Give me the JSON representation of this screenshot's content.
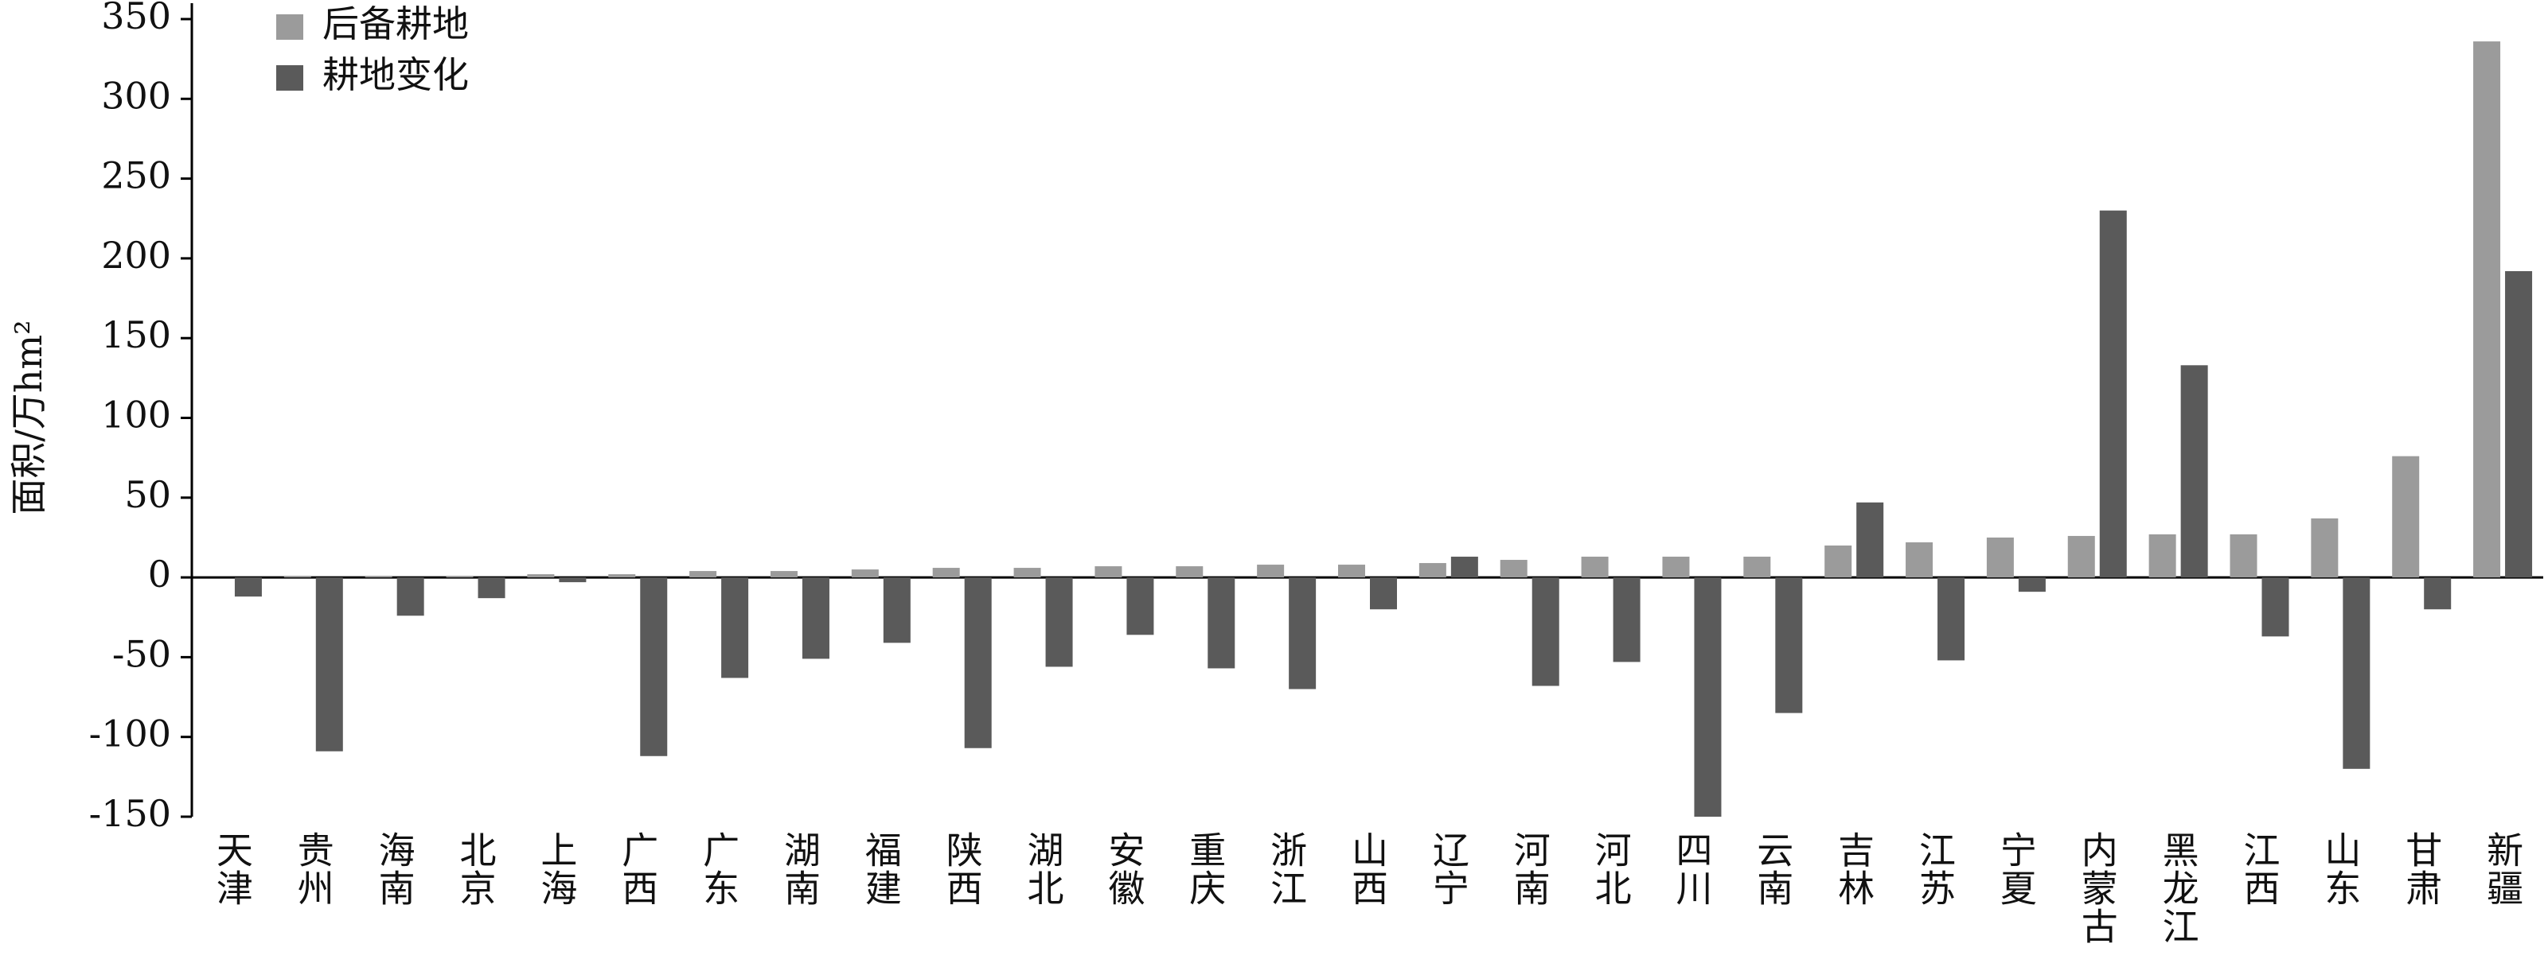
{
  "chart_data": {
    "type": "bar",
    "y_label": "面积/万hm²",
    "categories": [
      "天津",
      "贵州",
      "海南",
      "北京",
      "上海",
      "广西",
      "广东",
      "湖南",
      "福建",
      "陕西",
      "湖北",
      "安徽",
      "重庆",
      "浙江",
      "山西",
      "辽宁",
      "河南",
      "河北",
      "四川",
      "云南",
      "吉林",
      "江苏",
      "宁夏",
      "内蒙古",
      "黑龙江",
      "江西",
      "山东",
      "甘肃",
      "新疆"
    ],
    "series": [
      {
        "name": "后备耕地",
        "color": "#9b9b9b",
        "values": [
          0,
          1,
          1,
          1,
          2,
          2,
          4,
          4,
          5,
          6,
          6,
          7,
          7,
          8,
          8,
          9,
          11,
          13,
          13,
          13,
          20,
          22,
          25,
          26,
          27,
          27,
          37,
          76,
          336
        ]
      },
      {
        "name": "耕地变化",
        "color": "#5a5a5a",
        "values": [
          -12,
          -109,
          -24,
          -13,
          -3,
          -112,
          -63,
          -51,
          -41,
          -107,
          -56,
          -36,
          -57,
          -70,
          -20,
          13,
          -68,
          -53,
          -150,
          -85,
          47,
          -52,
          -9,
          230,
          133,
          -37,
          -120,
          -20,
          192
        ]
      }
    ],
    "ylim": [
      -150,
      350
    ],
    "yticks": [
      -150,
      -100,
      -50,
      0,
      50,
      100,
      150,
      200,
      250,
      300,
      350
    ],
    "legend": "upper-left"
  }
}
